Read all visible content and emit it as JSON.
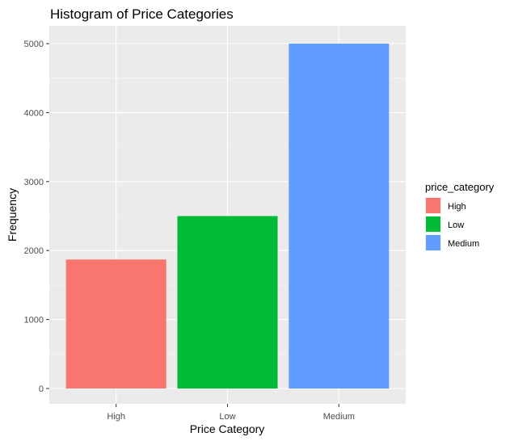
{
  "chart_data": {
    "type": "bar",
    "title": "Histogram of Price Categories",
    "xlabel": "Price Category",
    "ylabel": "Frequency",
    "categories": [
      "High",
      "Low",
      "Medium"
    ],
    "values": [
      1870,
      2500,
      5000
    ],
    "ylim": [
      0,
      5200
    ],
    "yticks": [
      0,
      1000,
      2000,
      3000,
      4000,
      5000
    ],
    "colors": [
      "#F8766D",
      "#00BA38",
      "#619CFF"
    ],
    "grid": true,
    "panel_background": "#EBEBEB",
    "legend": {
      "title": "price_category",
      "placement": "right",
      "entries": [
        "High",
        "Low",
        "Medium"
      ]
    }
  }
}
